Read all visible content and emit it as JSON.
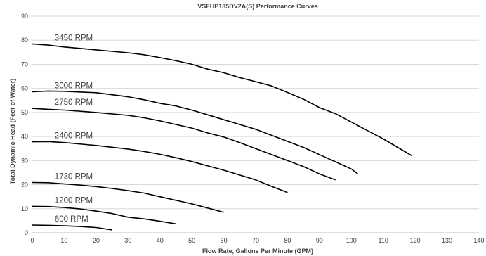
{
  "chart_data": {
    "type": "line",
    "title": "VSFHP185DV2A(S) Performance Curves",
    "xlabel": "Flow Rate, Gallons Per Minute (GPM)",
    "ylabel": "Total Dynamic Head (Feet of Water)",
    "xlim": [
      0,
      140
    ],
    "ylim": [
      0,
      90
    ],
    "xticks": [
      "0",
      "10",
      "20",
      "30",
      "40",
      "50",
      "60",
      "70",
      "80",
      "90",
      "100",
      "110",
      "120",
      "130",
      "140"
    ],
    "yticks": [
      "0",
      "10",
      "20",
      "30",
      "40",
      "50",
      "60",
      "70",
      "80",
      "90"
    ],
    "grid": "horizontal",
    "line_color": "#000000",
    "series": [
      {
        "name": "3450 RPM",
        "points": [
          [
            0,
            78.5
          ],
          [
            5,
            78
          ],
          [
            10,
            77.2
          ],
          [
            20,
            76
          ],
          [
            30,
            74.8
          ],
          [
            35,
            74
          ],
          [
            40,
            72.8
          ],
          [
            45,
            71.5
          ],
          [
            50,
            70
          ],
          [
            55,
            68
          ],
          [
            60,
            66.5
          ],
          [
            65,
            64.5
          ],
          [
            70,
            62.8
          ],
          [
            75,
            61
          ],
          [
            80,
            58.3
          ],
          [
            85,
            55.5
          ],
          [
            90,
            52
          ],
          [
            95,
            49.5
          ],
          [
            100,
            46
          ],
          [
            105,
            42.5
          ],
          [
            110,
            39
          ],
          [
            119,
            32
          ]
        ]
      },
      {
        "name": "3000 RPM",
        "points": [
          [
            0,
            58.6
          ],
          [
            5,
            58.9
          ],
          [
            10,
            58.8
          ],
          [
            20,
            58.2
          ],
          [
            30,
            56.5
          ],
          [
            35,
            55.3
          ],
          [
            40,
            53.8
          ],
          [
            45,
            52.7
          ],
          [
            50,
            51
          ],
          [
            55,
            49
          ],
          [
            60,
            47
          ],
          [
            65,
            45
          ],
          [
            70,
            43
          ],
          [
            75,
            40.5
          ],
          [
            80,
            38
          ],
          [
            85,
            35.5
          ],
          [
            90,
            32.5
          ],
          [
            95,
            29.5
          ],
          [
            100,
            26.5
          ],
          [
            102,
            24.5
          ]
        ]
      },
      {
        "name": "2750 RPM",
        "points": [
          [
            0,
            51.7
          ],
          [
            5,
            51.3
          ],
          [
            10,
            51
          ],
          [
            20,
            50
          ],
          [
            30,
            48.8
          ],
          [
            35,
            47.8
          ],
          [
            40,
            46.5
          ],
          [
            45,
            45
          ],
          [
            50,
            43.5
          ],
          [
            55,
            41.5
          ],
          [
            60,
            39.8
          ],
          [
            65,
            37.5
          ],
          [
            70,
            35
          ],
          [
            75,
            32.5
          ],
          [
            80,
            30
          ],
          [
            85,
            27.5
          ],
          [
            90,
            24.5
          ],
          [
            95,
            22
          ]
        ]
      },
      {
        "name": "2400 RPM",
        "points": [
          [
            0,
            37.8
          ],
          [
            5,
            37.9
          ],
          [
            10,
            37.5
          ],
          [
            20,
            36.3
          ],
          [
            30,
            34.8
          ],
          [
            35,
            33.8
          ],
          [
            40,
            32.6
          ],
          [
            45,
            31.2
          ],
          [
            50,
            29.6
          ],
          [
            55,
            27.8
          ],
          [
            60,
            26
          ],
          [
            65,
            24
          ],
          [
            70,
            22
          ],
          [
            75,
            19.3
          ],
          [
            80,
            16.7
          ]
        ]
      },
      {
        "name": "1730 RPM",
        "points": [
          [
            0,
            20.9
          ],
          [
            5,
            20.8
          ],
          [
            10,
            20.3
          ],
          [
            15,
            19.8
          ],
          [
            20,
            19.2
          ],
          [
            25,
            18.4
          ],
          [
            30,
            17.5
          ],
          [
            35,
            16.5
          ],
          [
            40,
            15
          ],
          [
            45,
            13.5
          ],
          [
            50,
            12
          ],
          [
            55,
            10.3
          ],
          [
            60,
            8.5
          ]
        ]
      },
      {
        "name": "1200 RPM",
        "points": [
          [
            0,
            11
          ],
          [
            5,
            10.9
          ],
          [
            10,
            10.5
          ],
          [
            15,
            9.9
          ],
          [
            20,
            9
          ],
          [
            25,
            8
          ],
          [
            30,
            6.5
          ],
          [
            35,
            5.8
          ],
          [
            40,
            4.8
          ],
          [
            45,
            3.7
          ]
        ]
      },
      {
        "name": "600 RPM",
        "points": [
          [
            0,
            3.2
          ],
          [
            5,
            3.1
          ],
          [
            10,
            2.9
          ],
          [
            15,
            2.6
          ],
          [
            20,
            2.2
          ],
          [
            25,
            1.2
          ]
        ]
      }
    ]
  }
}
